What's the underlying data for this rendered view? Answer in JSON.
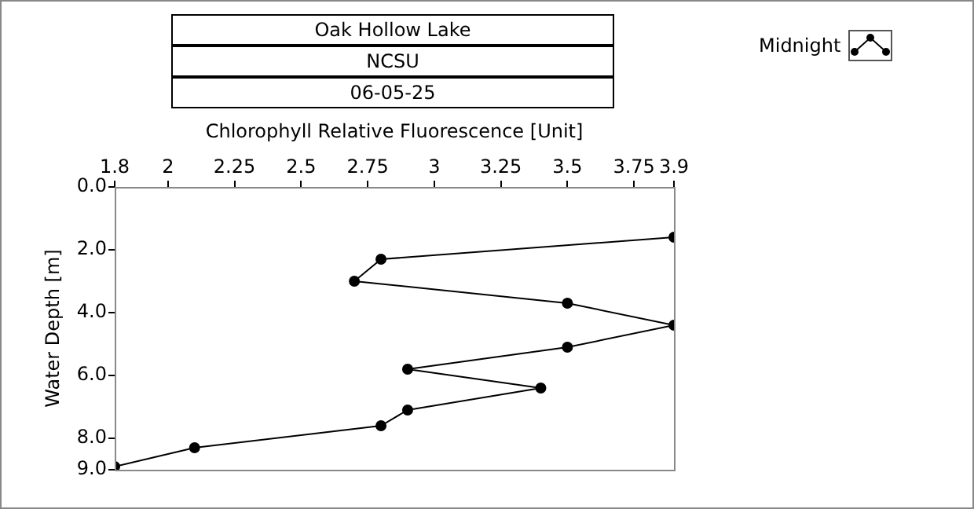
{
  "chart_data": {
    "type": "line",
    "title": "Oak Hollow Lake",
    "subtitle": "NCSU",
    "annotations": [
      "06-05-25"
    ],
    "xlabel": "Chlorophyll Relative Fluorescence [Unit]",
    "ylabel": "Water Depth [m]",
    "xlim": [
      1.8,
      3.9
    ],
    "xticks": [
      1.8,
      2,
      2.25,
      2.5,
      2.75,
      3,
      3.25,
      3.5,
      3.75,
      3.9
    ],
    "ylim": [
      9,
      0
    ],
    "yticks": [
      {
        "value": 0,
        "label": "0.0"
      },
      {
        "value": 2,
        "label": "2.0"
      },
      {
        "value": 4,
        "label": "4.0"
      },
      {
        "value": 6,
        "label": "6.0"
      },
      {
        "value": 8,
        "label": "8.0"
      },
      {
        "value": 9,
        "label": "9.0"
      }
    ],
    "grid": false,
    "legend": "top right",
    "marker": "circle",
    "line_style": "solid",
    "series": [
      {
        "name": "Midnight",
        "color": "#000000",
        "x": [
          3.9,
          2.8,
          2.7,
          3.5,
          3.9,
          3.5,
          2.9,
          3.4,
          2.9,
          2.8,
          2.1,
          1.8
        ],
        "values": [
          1.6,
          2.3,
          3.0,
          3.7,
          4.4,
          5.1,
          5.8,
          6.4,
          7.1,
          7.6,
          8.3,
          8.9
        ]
      }
    ]
  }
}
